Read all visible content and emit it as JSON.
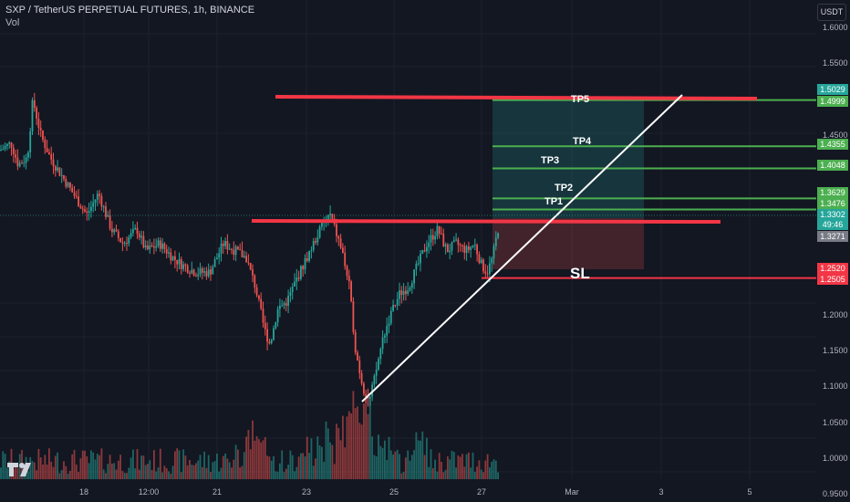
{
  "header": {
    "title": "SXP / TetherUS PERPETUAL FUTURES, 1h, BINANCE",
    "volume_label": "Vol"
  },
  "currency": "USDT",
  "price_axis": {
    "ticks": [
      "1.6000",
      "1.5500",
      "1.4500",
      "1.2000",
      "1.1500",
      "1.1000",
      "1.0500",
      "1.0000",
      "0.9500"
    ]
  },
  "time_axis": {
    "ticks": [
      "18",
      "12:00",
      "21",
      "23",
      "25",
      "27",
      "Mar",
      "3",
      "5"
    ]
  },
  "price_tags": [
    {
      "name": "sl-top-line-tag",
      "value": "1.5029",
      "color": "#26a69a"
    },
    {
      "name": "tp5-tag",
      "value": "1.4999",
      "color": "#4caf50"
    },
    {
      "name": "tp4-tag",
      "value": "1.4355",
      "color": "#4caf50"
    },
    {
      "name": "tp3-tag",
      "value": "1.4048",
      "color": "#4caf50"
    },
    {
      "name": "tp2-tag",
      "value": "1.3629",
      "color": "#4caf50"
    },
    {
      "name": "tp1-tag",
      "value": "1.3476",
      "color": "#4caf50"
    },
    {
      "name": "last-price-tag",
      "value": "1.3302",
      "color": "#26a69a"
    },
    {
      "name": "entry-tag",
      "value": "1.3271",
      "color": "#787b86"
    },
    {
      "name": "sl-tag",
      "value": "1.2520",
      "color": "#f23645"
    },
    {
      "name": "sl2-tag",
      "value": "1.2505",
      "color": "#f23645"
    }
  ],
  "countdown": "49:46",
  "annotations": {
    "tp1": "TP1",
    "tp2": "TP2",
    "tp3": "TP3",
    "tp4": "TP4",
    "tp5": "TP5",
    "sl": "SL"
  },
  "colors": {
    "background": "#131722",
    "up": "#26a69a",
    "down": "#ef5350",
    "target_line": "#4caf50",
    "resistance_line": "#f23645",
    "trend_line": "#ffffff"
  },
  "chart_data": {
    "type": "candlestick",
    "symbol": "SXP/USDT",
    "interval": "1h",
    "ylim": [
      0.93,
      1.62
    ],
    "levels": {
      "tp5": 1.4999,
      "tp4": 1.4355,
      "tp3": 1.4048,
      "tp2": 1.3629,
      "tp1": 1.3476,
      "last": 1.3302,
      "entry": 1.3271,
      "sl": 1.252,
      "sl2": 1.2505,
      "resistance_top": 1.5029
    },
    "price_path": [
      [
        0,
        1.43
      ],
      [
        12,
        1.44
      ],
      [
        20,
        1.41
      ],
      [
        30,
        1.42
      ],
      [
        36,
        1.5
      ],
      [
        45,
        1.45
      ],
      [
        55,
        1.42
      ],
      [
        65,
        1.4
      ],
      [
        75,
        1.38
      ],
      [
        85,
        1.36
      ],
      [
        95,
        1.34
      ],
      [
        108,
        1.37
      ],
      [
        122,
        1.32
      ],
      [
        135,
        1.3
      ],
      [
        150,
        1.32
      ],
      [
        160,
        1.29
      ],
      [
        175,
        1.3
      ],
      [
        190,
        1.28
      ],
      [
        200,
        1.27
      ],
      [
        215,
        1.26
      ],
      [
        230,
        1.26
      ],
      [
        245,
        1.3
      ],
      [
        258,
        1.29
      ],
      [
        270,
        1.28
      ],
      [
        280,
        1.24
      ],
      [
        290,
        1.18
      ],
      [
        296,
        1.16
      ],
      [
        305,
        1.21
      ],
      [
        315,
        1.22
      ],
      [
        325,
        1.25
      ],
      [
        340,
        1.29
      ],
      [
        355,
        1.33
      ],
      [
        362,
        1.34
      ],
      [
        375,
        1.29
      ],
      [
        383,
        1.24
      ],
      [
        390,
        1.15
      ],
      [
        398,
        1.1
      ],
      [
        405,
        1.08
      ],
      [
        412,
        1.12
      ],
      [
        420,
        1.17
      ],
      [
        428,
        1.2
      ],
      [
        438,
        1.23
      ],
      [
        448,
        1.24
      ],
      [
        458,
        1.27
      ],
      [
        468,
        1.3
      ],
      [
        480,
        1.32
      ],
      [
        490,
        1.29
      ],
      [
        500,
        1.3
      ],
      [
        512,
        1.29
      ],
      [
        520,
        1.3
      ],
      [
        528,
        1.27
      ],
      [
        534,
        1.26
      ],
      [
        540,
        1.28
      ],
      [
        546,
        1.32
      ],
      [
        549,
        1.33
      ]
    ]
  }
}
